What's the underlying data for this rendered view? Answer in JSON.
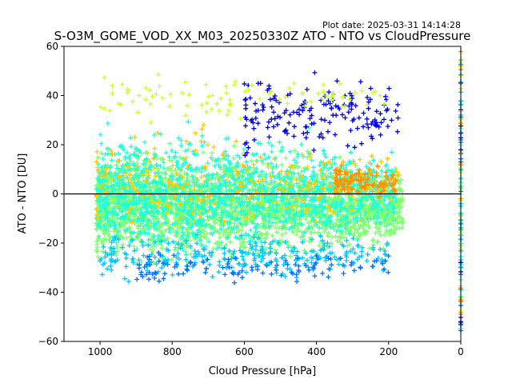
{
  "chart_data": {
    "type": "scatter",
    "plot_date": "Plot date: 2025-03-31 14:14:28",
    "title": "S-O3M_GOME_VOD_XX_M03_20250330Z ATO - NTO vs CloudPressure",
    "xlabel": "Cloud Pressure [hPa]",
    "ylabel": "ATO - NTO [DU]",
    "xlim": [
      1100,
      0
    ],
    "ylim": [
      -60,
      60
    ],
    "x_ticks": [
      1000,
      800,
      600,
      400,
      200,
      0
    ],
    "y_ticks": [
      -60,
      -40,
      -20,
      0,
      20,
      40,
      60
    ],
    "reference_line_y": 0,
    "marker": "+",
    "grid": false,
    "legend": "none",
    "colors": [
      "#0000e0",
      "#0070ff",
      "#00c8ff",
      "#20ffd8",
      "#80ff70",
      "#c8ff30",
      "#ffc800",
      "#ff9000"
    ],
    "point_clouds": [
      {
        "color": "#80ff70",
        "x_range": [
          1010,
          160
        ],
        "y_center": -5,
        "y_spread": 30,
        "count": 2600
      },
      {
        "color": "#20ffd8",
        "x_range": [
          1010,
          180
        ],
        "y_center": 0,
        "y_spread": 34,
        "count": 1500
      },
      {
        "color": "#ffc800",
        "x_range": [
          1010,
          170
        ],
        "y_center": 5,
        "y_spread": 28,
        "count": 260
      },
      {
        "color": "#00c8ff",
        "x_range": [
          1000,
          200
        ],
        "y_center": -25,
        "y_spread": 14,
        "count": 280
      },
      {
        "color": "#0000e0",
        "x_range": [
          600,
          170
        ],
        "y_center": 32,
        "y_spread": 25,
        "count": 170
      },
      {
        "color": "#0070ff",
        "x_range": [
          900,
          200
        ],
        "y_center": -30,
        "y_spread": 10,
        "count": 110
      },
      {
        "color": "#c8ff30",
        "x_range": [
          1000,
          200
        ],
        "y_center": 40,
        "y_spread": 15,
        "count": 90
      },
      {
        "color": "#ff9000",
        "x_range": [
          350,
          180
        ],
        "y_center": 5,
        "y_spread": 12,
        "count": 120
      }
    ]
  }
}
